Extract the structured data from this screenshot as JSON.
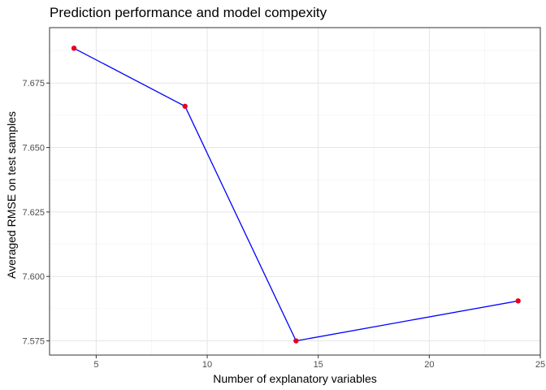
{
  "chart_data": {
    "type": "line",
    "title": "Prediction performance and model compexity",
    "xlabel": "Number of explanatory variables",
    "ylabel": "Averaged RMSE on test samples",
    "x": [
      4,
      9,
      14,
      24
    ],
    "y": [
      7.6885,
      7.666,
      7.575,
      7.5905
    ],
    "xlim": [
      2.9,
      25.0
    ],
    "ylim": [
      7.5695,
      7.6965
    ],
    "xticks": [
      5,
      10,
      15,
      20,
      25
    ],
    "yticks": [
      7.575,
      7.6,
      7.625,
      7.65,
      7.675
    ],
    "xtick_labels": [
      "5",
      "10",
      "15",
      "20",
      "25"
    ],
    "ytick_labels": [
      "7.575",
      "7.600",
      "7.625",
      "7.650",
      "7.675"
    ],
    "grid": true,
    "line_color": "#0000ff",
    "point_color": "#e8001c"
  }
}
